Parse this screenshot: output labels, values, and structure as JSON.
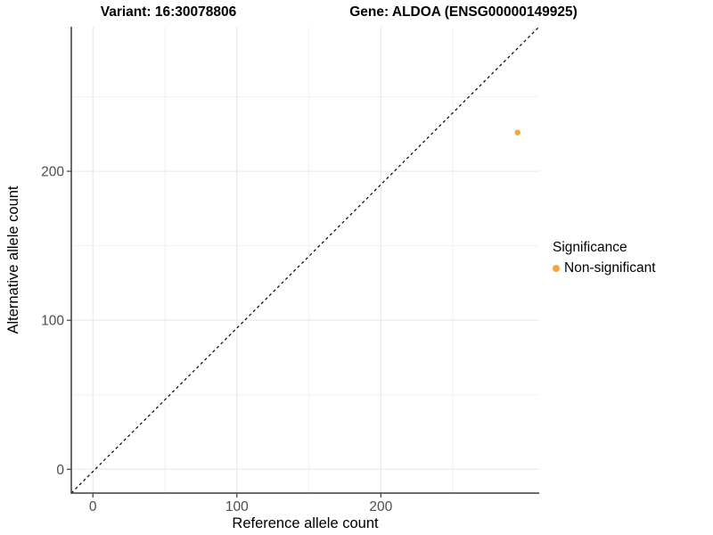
{
  "chart_data": {
    "type": "scatter",
    "title_left": "Variant: 16:30078806",
    "title_right": "Gene: ALDOA (ENSG00000149925)",
    "xlabel": "Reference allele count",
    "ylabel": "Alternative allele count",
    "xlim": [
      -15,
      310
    ],
    "ylim": [
      -16,
      297
    ],
    "x_breaks": [
      0,
      100,
      200
    ],
    "x_tick_labels": [
      "0",
      "100",
      "200"
    ],
    "y_breaks": [
      0,
      100,
      200
    ],
    "y_tick_labels": [
      "0",
      "100",
      "200"
    ],
    "x_minor_breaks": [
      50,
      150,
      250
    ],
    "y_minor_breaks": [
      50,
      150,
      250
    ],
    "grid": {
      "major_color": "#e6e6e6",
      "minor_color": "#f2f2f2"
    },
    "axis_color": "#3c3c3c",
    "reference_line": {
      "type": "identity",
      "style": "dashed",
      "color": "#000000"
    },
    "points": [
      {
        "x": 295,
        "y": 226,
        "group": "Non-significant",
        "color": "#F9A242"
      }
    ],
    "legend": {
      "title": "Significance",
      "position": "right",
      "items": [
        {
          "label": "Non-significant",
          "color": "#F9A242"
        }
      ]
    }
  }
}
